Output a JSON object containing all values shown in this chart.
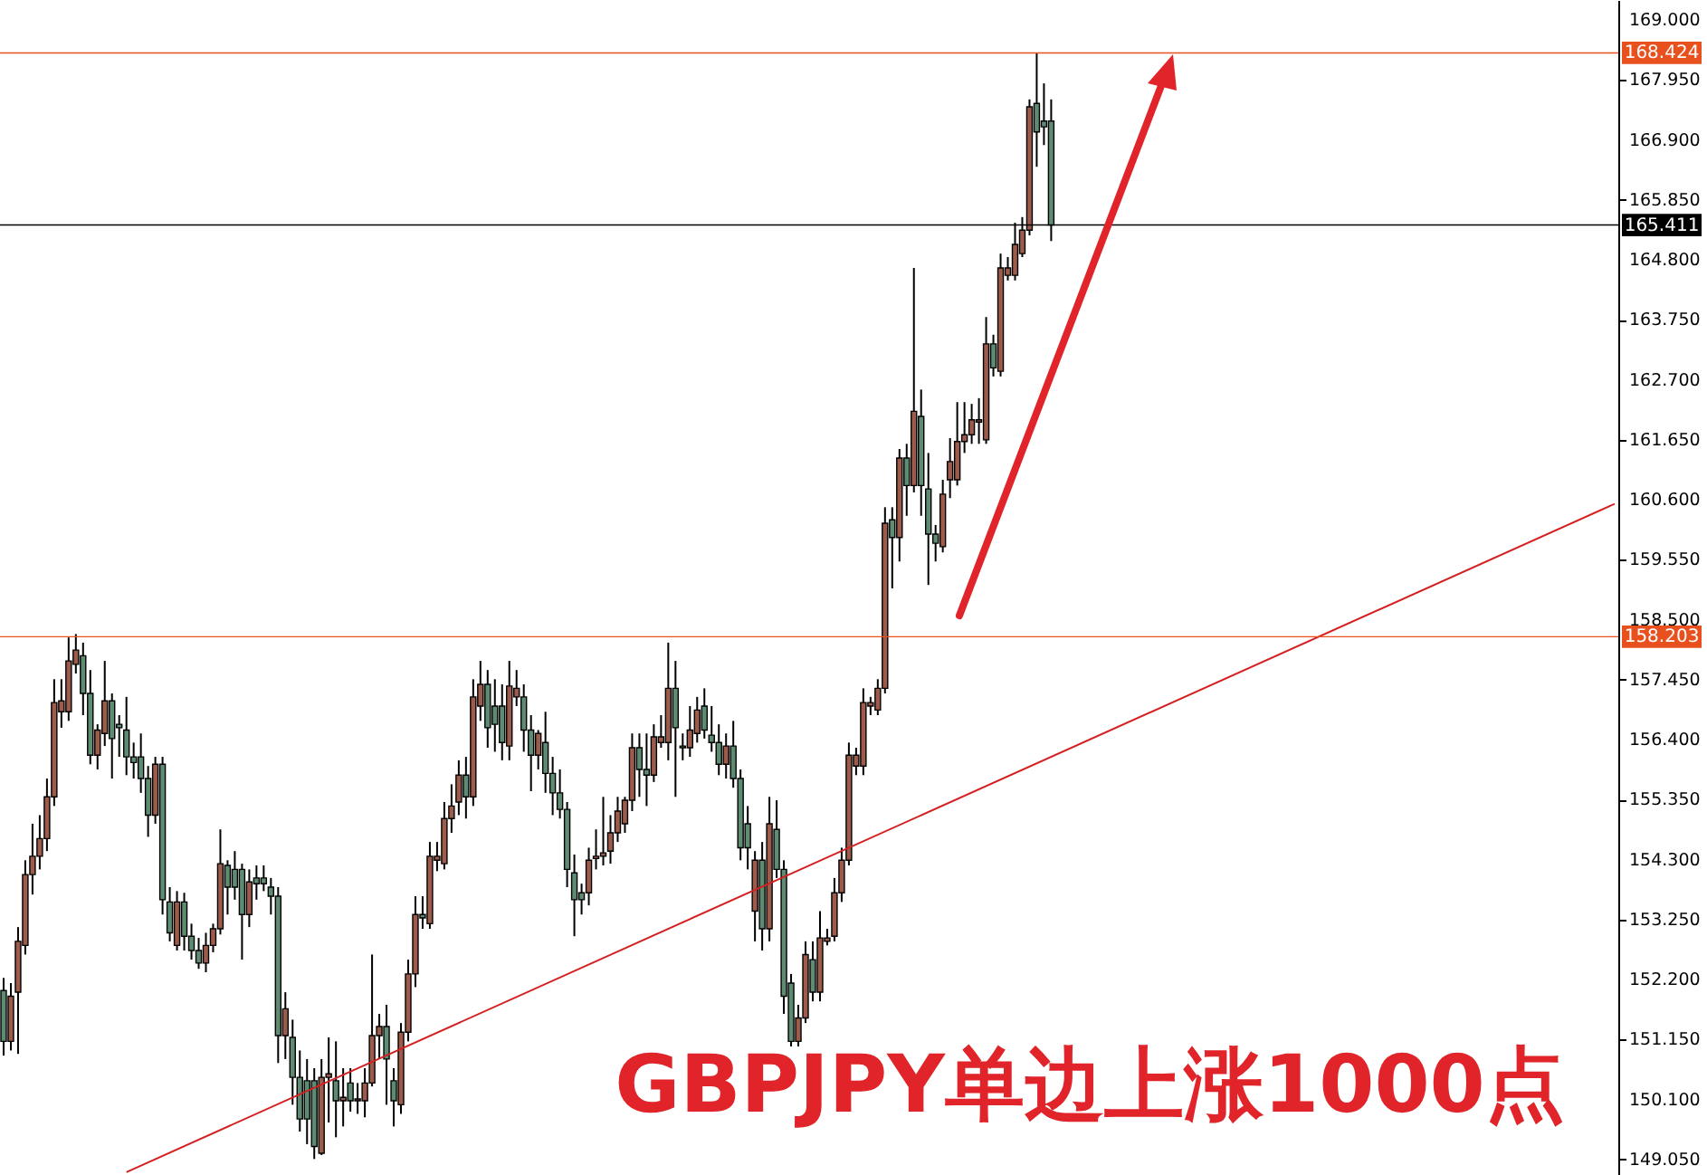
{
  "chart_data": {
    "type": "candlestick",
    "title": "GBPJPY单边上涨1000点",
    "categories": [
      null,
      null,
      null,
      null,
      null,
      null,
      null,
      null,
      null,
      null,
      null,
      null,
      null,
      null,
      null,
      null,
      null,
      null,
      null,
      null,
      null,
      null,
      null,
      null,
      null,
      null,
      null,
      null,
      null,
      null,
      null,
      null,
      null,
      null,
      null,
      null,
      null,
      null,
      null,
      null,
      null,
      null,
      null,
      null,
      null,
      null,
      null,
      null,
      null,
      null,
      null,
      null,
      null,
      null,
      null,
      null,
      null,
      null,
      null,
      null,
      null,
      null,
      null,
      null,
      null,
      null,
      null,
      null,
      null,
      null,
      null,
      null,
      null,
      null,
      null,
      null,
      null,
      null,
      null,
      null,
      null,
      null,
      null,
      null,
      null,
      null,
      null,
      null,
      null,
      null,
      null,
      null,
      null,
      null,
      null,
      null,
      null,
      null,
      null,
      null,
      null,
      null,
      null,
      null,
      null,
      null,
      null,
      null,
      null,
      null,
      null,
      null,
      null,
      null,
      null,
      null,
      null,
      null,
      null,
      null,
      null,
      null,
      null,
      null,
      null,
      null,
      null,
      null,
      null,
      null,
      null,
      null,
      null,
      null,
      null,
      null,
      null,
      null,
      null,
      null,
      null,
      null,
      null,
      null,
      null,
      null,
      null,
      null,
      null,
      null,
      null,
      null,
      null,
      null,
      null,
      null,
      null,
      null,
      null,
      null,
      null,
      null,
      null,
      null,
      null,
      null,
      null,
      null,
      null,
      null,
      null,
      null,
      null,
      null,
      null,
      null,
      null,
      null,
      null,
      null,
      null,
      null,
      null,
      null,
      null,
      null,
      null,
      null,
      null,
      null,
      null,
      null,
      null,
      null,
      null,
      null,
      null,
      null,
      null,
      null,
      null,
      null,
      null,
      null,
      null,
      null,
      null,
      null,
      null,
      null,
      null,
      null,
      null,
      null,
      null,
      null,
      null,
      null,
      null,
      null,
      null,
      null,
      null,
      null
    ],
    "ohlc": [
      [
        152.01,
        152.23,
        150.87,
        151.12
      ],
      [
        151.12,
        152.14,
        150.96,
        151.91
      ],
      [
        151.98,
        153.12,
        150.9,
        152.87
      ],
      [
        152.8,
        154.29,
        152.64,
        154.04
      ],
      [
        154.04,
        154.93,
        153.69,
        154.36
      ],
      [
        154.36,
        155.08,
        154.13,
        154.67
      ],
      [
        154.67,
        155.72,
        154.45,
        155.4
      ],
      [
        155.4,
        157.46,
        155.24,
        157.05
      ],
      [
        156.89,
        157.46,
        156.61,
        157.08
      ],
      [
        156.89,
        158.19,
        156.73,
        157.78
      ],
      [
        157.72,
        158.25,
        157.56,
        157.97
      ],
      [
        157.87,
        158.1,
        156.83,
        157.21
      ],
      [
        157.21,
        157.62,
        155.97,
        156.13
      ],
      [
        156.13,
        156.67,
        155.88,
        156.57
      ],
      [
        156.51,
        157.78,
        156.29,
        157.08
      ],
      [
        157.08,
        157.21,
        155.72,
        156.42
      ],
      [
        156.67,
        156.83,
        156.1,
        156.61
      ],
      [
        156.57,
        157.15,
        155.78,
        156.1
      ],
      [
        156.1,
        156.35,
        155.72,
        156.0
      ],
      [
        156.1,
        156.51,
        155.47,
        155.72
      ],
      [
        155.72,
        155.94,
        154.7,
        155.08
      ],
      [
        155.08,
        156.1,
        154.93,
        155.97
      ],
      [
        155.97,
        156.1,
        153.34,
        153.6
      ],
      [
        153.56,
        153.82,
        152.87,
        153.02
      ],
      [
        152.8,
        153.75,
        152.71,
        153.56
      ],
      [
        153.56,
        153.72,
        152.71,
        152.96
      ],
      [
        152.96,
        153.18,
        152.55,
        152.71
      ],
      [
        152.71,
        152.93,
        152.39,
        152.49
      ],
      [
        152.49,
        153.02,
        152.33,
        152.8
      ],
      [
        152.8,
        153.18,
        152.68,
        153.09
      ],
      [
        153.09,
        154.83,
        152.99,
        154.23
      ],
      [
        154.2,
        154.29,
        153.34,
        153.82
      ],
      [
        154.13,
        154.45,
        153.6,
        153.82
      ],
      [
        154.13,
        154.23,
        152.55,
        153.34
      ],
      [
        153.34,
        154.13,
        153.12,
        153.91
      ],
      [
        153.98,
        154.2,
        153.6,
        153.88
      ],
      [
        153.98,
        154.2,
        153.75,
        153.88
      ],
      [
        153.82,
        153.98,
        153.34,
        153.66
      ],
      [
        153.66,
        153.82,
        150.74,
        151.22
      ],
      [
        151.22,
        151.98,
        150.81,
        151.69
      ],
      [
        151.19,
        151.5,
        150.01,
        150.49
      ],
      [
        150.49,
        150.96,
        149.54,
        149.76
      ],
      [
        150.43,
        150.81,
        149.32,
        149.76
      ],
      [
        150.43,
        150.65,
        149.06,
        149.28
      ],
      [
        149.16,
        150.81,
        149.13,
        150.49
      ],
      [
        150.49,
        151.19,
        149.7,
        150.55
      ],
      [
        150.43,
        151.12,
        149.44,
        150.08
      ],
      [
        150.08,
        150.65,
        149.63,
        150.14
      ],
      [
        150.39,
        150.65,
        149.89,
        150.08
      ],
      [
        150.08,
        150.39,
        149.85,
        150.11
      ],
      [
        150.08,
        150.65,
        149.79,
        150.39
      ],
      [
        150.39,
        152.64,
        150.33,
        151.22
      ],
      [
        151.22,
        151.6,
        150.81,
        151.38
      ],
      [
        151.38,
        151.76,
        150.01,
        150.81
      ],
      [
        150.43,
        150.65,
        149.63,
        150.08
      ],
      [
        150.01,
        151.44,
        149.85,
        151.28
      ],
      [
        151.28,
        152.55,
        151.12,
        152.3
      ],
      [
        152.3,
        153.66,
        152.07,
        153.34
      ],
      [
        153.34,
        153.66,
        153.09,
        153.28
      ],
      [
        153.18,
        154.61,
        153.09,
        154.36
      ],
      [
        154.29,
        154.61,
        154.1,
        154.36
      ],
      [
        154.23,
        155.31,
        154.13,
        155.02
      ],
      [
        155.02,
        155.62,
        154.77,
        155.24
      ],
      [
        155.31,
        156.04,
        155.08,
        155.78
      ],
      [
        155.78,
        156.1,
        155.02,
        155.4
      ],
      [
        155.4,
        157.46,
        155.24,
        157.15
      ],
      [
        156.99,
        157.78,
        156.73,
        157.37
      ],
      [
        157.37,
        157.62,
        156.26,
        156.61
      ],
      [
        156.99,
        157.46,
        156.19,
        156.67
      ],
      [
        156.99,
        157.37,
        156.04,
        156.35
      ],
      [
        156.29,
        157.78,
        156.04,
        157.34
      ],
      [
        157.15,
        157.62,
        156.99,
        157.3
      ],
      [
        157.15,
        157.37,
        156.19,
        156.57
      ],
      [
        156.57,
        156.83,
        155.5,
        156.13
      ],
      [
        156.13,
        156.57,
        155.88,
        156.51
      ],
      [
        156.35,
        156.89,
        155.47,
        155.81
      ],
      [
        155.81,
        156.1,
        155.08,
        155.47
      ],
      [
        155.47,
        155.88,
        155.02,
        155.18
      ],
      [
        155.18,
        155.31,
        153.82,
        154.13
      ],
      [
        154.07,
        154.39,
        152.96,
        153.6
      ],
      [
        153.72,
        153.88,
        153.34,
        153.6
      ],
      [
        153.72,
        154.51,
        153.5,
        154.29
      ],
      [
        154.32,
        154.83,
        154.13,
        154.36
      ],
      [
        154.36,
        155.4,
        154.2,
        154.42
      ],
      [
        154.45,
        155.08,
        154.23,
        154.77
      ],
      [
        154.77,
        155.4,
        154.61,
        155.15
      ],
      [
        154.93,
        155.4,
        154.77,
        155.34
      ],
      [
        155.34,
        156.51,
        155.15,
        156.26
      ],
      [
        156.26,
        156.51,
        155.4,
        155.88
      ],
      [
        155.88,
        156.51,
        155.24,
        155.78
      ],
      [
        155.78,
        156.67,
        155.66,
        156.45
      ],
      [
        156.35,
        156.83,
        156.26,
        156.45
      ],
      [
        156.35,
        158.1,
        156.04,
        157.3
      ],
      [
        157.3,
        157.78,
        155.4,
        156.61
      ],
      [
        156.29,
        156.51,
        156.04,
        156.26
      ],
      [
        156.26,
        156.99,
        156.1,
        156.57
      ],
      [
        156.51,
        157.15,
        156.35,
        156.92
      ],
      [
        156.99,
        157.3,
        156.42,
        156.57
      ],
      [
        156.48,
        156.99,
        156.19,
        156.35
      ],
      [
        156.35,
        156.67,
        155.78,
        155.97
      ],
      [
        155.97,
        156.51,
        155.72,
        156.29
      ],
      [
        156.29,
        156.73,
        155.56,
        155.72
      ],
      [
        155.72,
        155.88,
        154.29,
        154.51
      ],
      [
        154.93,
        155.24,
        154.13,
        154.51
      ],
      [
        153.4,
        154.45,
        152.87,
        154.29
      ],
      [
        154.29,
        154.61,
        152.71,
        153.09
      ],
      [
        153.09,
        155.4,
        152.87,
        154.93
      ],
      [
        154.83,
        155.34,
        153.98,
        154.13
      ],
      [
        154.13,
        154.29,
        151.6,
        151.91
      ],
      [
        152.14,
        152.3,
        151.03,
        151.12
      ],
      [
        151.12,
        151.76,
        151.03,
        151.53
      ],
      [
        151.53,
        152.87,
        151.44,
        152.64
      ],
      [
        152.55,
        152.87,
        151.82,
        151.98
      ],
      [
        151.98,
        153.4,
        151.82,
        152.93
      ],
      [
        152.87,
        153.09,
        152.8,
        152.93
      ],
      [
        152.96,
        153.98,
        152.87,
        153.72
      ],
      [
        153.72,
        154.51,
        153.56,
        154.29
      ],
      [
        154.29,
        156.35,
        154.2,
        156.13
      ],
      [
        155.94,
        156.26,
        155.78,
        156.13
      ],
      [
        155.94,
        157.3,
        155.78,
        157.05
      ],
      [
        156.99,
        157.15,
        156.83,
        157.05
      ],
      [
        156.92,
        157.46,
        156.83,
        157.3
      ],
      [
        157.3,
        160.47,
        157.21,
        160.19
      ],
      [
        160.25,
        160.47,
        159.05,
        159.94
      ],
      [
        159.94,
        161.49,
        159.52,
        161.33
      ],
      [
        161.33,
        161.58,
        160.32,
        160.85
      ],
      [
        160.85,
        164.66,
        160.73,
        162.15
      ],
      [
        162.06,
        162.53,
        160.32,
        160.85
      ],
      [
        160.79,
        161.42,
        159.11,
        160.0
      ],
      [
        160.0,
        160.16,
        159.52,
        159.84
      ],
      [
        159.78,
        160.95,
        159.68,
        160.7
      ],
      [
        160.95,
        161.68,
        160.63,
        161.27
      ],
      [
        160.95,
        162.31,
        160.85,
        161.62
      ],
      [
        161.62,
        162.31,
        161.42,
        161.74
      ],
      [
        161.74,
        162.28,
        161.58,
        162.0
      ],
      [
        161.96,
        162.38,
        161.58,
        162.0
      ],
      [
        161.65,
        163.8,
        161.58,
        163.33
      ],
      [
        163.33,
        163.49,
        162.76,
        162.91
      ],
      [
        162.85,
        164.91,
        162.76,
        164.66
      ],
      [
        164.53,
        164.85,
        164.44,
        164.66
      ],
      [
        164.53,
        165.45,
        164.44,
        165.07
      ],
      [
        164.91,
        165.55,
        164.85,
        165.32
      ],
      [
        165.32,
        167.61,
        165.23,
        167.48
      ],
      [
        167.54,
        168.42,
        166.43,
        167.04
      ],
      [
        167.23,
        167.89,
        166.81,
        167.13
      ],
      [
        167.23,
        167.61,
        165.13,
        165.41
      ],
      null,
      null,
      null,
      null,
      null,
      null,
      null,
      null,
      null,
      null,
      null,
      null,
      null,
      null,
      null,
      null,
      null,
      null,
      null,
      null,
      null,
      null,
      null,
      null,
      null,
      null,
      null,
      null,
      null,
      null,
      null,
      null,
      null,
      null,
      null,
      null,
      null,
      null,
      null,
      null,
      null,
      null,
      null,
      null,
      null,
      null,
      null,
      null,
      null,
      null,
      null,
      null,
      null,
      null,
      null,
      null,
      null,
      null,
      null,
      null,
      null,
      null,
      null,
      null,
      null,
      null,
      null,
      null,
      null,
      null,
      null,
      null,
      null,
      null,
      null,
      null,
      null,
      null
    ],
    "colors": [
      "#5e8b72",
      "#9c5b4b",
      "#9c5b4b",
      "#9c5b4b",
      "#9c5b4b",
      "#9c5b4b",
      "#9c5b4b",
      "#9c5b4b",
      "#9c5b4b",
      "#9c5b4b",
      "#9c5b4b",
      "#5e8b72",
      "#5e8b72",
      "#9c5b4b",
      "#9c5b4b",
      "#5e8b72",
      "#5e8b72",
      "#5e8b72",
      "#5e8b72",
      "#5e8b72",
      "#5e8b72",
      "#9c5b4b",
      "#5e8b72",
      "#5e8b72",
      "#9c5b4b",
      "#5e8b72",
      "#5e8b72",
      "#5e8b72",
      "#9c5b4b",
      "#9c5b4b",
      "#9c5b4b",
      "#5e8b72",
      "#5e8b72",
      "#5e8b72",
      "#9c5b4b",
      "#5e8b72",
      "#5e8b72",
      "#5e8b72",
      "#5e8b72",
      "#9c5b4b",
      "#5e8b72",
      "#5e8b72",
      "#5e8b72",
      "#5e8b72",
      "#9c5b4b",
      "#9c5b4b",
      "#5e8b72",
      "#9c5b4b",
      "#5e8b72",
      "#9c5b4b",
      "#9c5b4b",
      "#9c5b4b",
      "#9c5b4b",
      "#5e8b72",
      "#5e8b72",
      "#9c5b4b",
      "#9c5b4b",
      "#9c5b4b",
      "#5e8b72",
      "#9c5b4b",
      "#9c5b4b",
      "#9c5b4b",
      "#9c5b4b",
      "#9c5b4b",
      "#5e8b72",
      "#9c5b4b",
      "#9c5b4b",
      "#5e8b72",
      "#5e8b72",
      "#5e8b72",
      "#9c5b4b",
      "#9c5b4b",
      "#5e8b72",
      "#5e8b72",
      "#9c5b4b",
      "#5e8b72",
      "#5e8b72",
      "#5e8b72",
      "#5e8b72",
      "#5e8b72",
      "#5e8b72",
      "#9c5b4b",
      "#9c5b4b",
      "#9c5b4b",
      "#9c5b4b",
      "#9c5b4b",
      "#9c5b4b",
      "#9c5b4b",
      "#5e8b72",
      "#5e8b72",
      "#9c5b4b",
      "#9c5b4b",
      "#9c5b4b",
      "#5e8b72",
      "#5e8b72",
      "#9c5b4b",
      "#9c5b4b",
      "#5e8b72",
      "#5e8b72",
      "#5e8b72",
      "#9c5b4b",
      "#5e8b72",
      "#5e8b72",
      "#5e8b72",
      "#9c5b4b",
      "#5e8b72",
      "#9c5b4b",
      "#5e8b72",
      "#5e8b72",
      "#5e8b72",
      "#9c5b4b",
      "#9c5b4b",
      "#5e8b72",
      "#9c5b4b",
      "#9c5b4b",
      "#9c5b4b",
      "#9c5b4b",
      "#9c5b4b",
      "#9c5b4b",
      "#9c5b4b",
      "#9c5b4b",
      "#9c5b4b",
      "#9c5b4b",
      "#5e8b72",
      "#9c5b4b",
      "#5e8b72",
      "#9c5b4b",
      "#5e8b72",
      "#5e8b72",
      "#5e8b72",
      "#9c5b4b",
      "#9c5b4b",
      "#9c5b4b",
      "#9c5b4b",
      "#9c5b4b",
      "#9c5b4b",
      "#9c5b4b",
      "#5e8b72",
      "#9c5b4b",
      "#9c5b4b",
      "#9c5b4b",
      "#9c5b4b",
      "#9c5b4b",
      "#5e8b72",
      "#5e8b72",
      "#5e8b72",
      null,
      null,
      null,
      null,
      null,
      null,
      null,
      null,
      null,
      null,
      null,
      null,
      null,
      null,
      null,
      null,
      null,
      null,
      null,
      null,
      null,
      null,
      null,
      null,
      null,
      null,
      null,
      null,
      null,
      null,
      null,
      null,
      null,
      null,
      null,
      null,
      null,
      null,
      null,
      null,
      null,
      null,
      null,
      null,
      null,
      null,
      null,
      null,
      null,
      null,
      null,
      null,
      null,
      null,
      null,
      null,
      null,
      null,
      null,
      null,
      null,
      null,
      null,
      null,
      null,
      null,
      null,
      null,
      null,
      null,
      null,
      null,
      null,
      null,
      null,
      null,
      null,
      null
    ],
    "series": [
      {
        "type": "line",
        "color": "#d42020",
        "values": [
          null,
          null,
          null,
          null,
          null,
          null,
          null,
          null,
          null,
          null,
          null,
          null,
          null,
          null,
          null,
          null,
          null,
          148.83,
          null,
          null,
          null,
          null,
          null,
          null,
          null,
          null,
          null,
          null,
          null,
          null,
          null,
          null,
          null,
          null,
          null,
          null,
          null,
          null,
          null,
          null,
          null,
          null,
          null,
          null,
          null,
          null,
          null,
          null,
          null,
          null,
          null,
          null,
          null,
          null,
          null,
          null,
          null,
          null,
          null,
          null,
          null,
          null,
          null,
          null,
          null,
          null,
          null,
          null,
          null,
          null,
          null,
          null,
          null,
          null,
          null,
          null,
          null,
          null,
          null,
          null,
          null,
          null,
          null,
          null,
          null,
          null,
          null,
          null,
          null,
          null,
          null,
          null,
          null,
          null,
          null,
          null,
          null,
          null,
          null,
          null,
          null,
          null,
          null,
          null,
          null,
          null,
          null,
          null,
          null,
          null,
          null,
          null,
          null,
          null,
          null,
          null,
          null,
          null,
          null,
          null,
          null,
          null,
          null,
          null,
          null,
          null,
          null,
          null,
          null,
          null,
          null,
          null,
          null,
          null,
          null,
          null,
          null,
          null,
          null,
          null,
          null,
          null,
          null,
          null,
          null,
          null,
          null,
          null,
          null,
          null,
          null,
          null,
          null,
          null,
          null,
          null,
          null,
          null,
          null,
          null,
          null,
          null,
          null,
          null,
          null,
          null,
          null,
          null,
          null,
          null,
          null,
          null,
          null,
          null,
          null,
          null,
          null,
          null,
          null,
          null,
          null,
          null,
          null,
          null,
          null,
          null,
          null,
          null,
          null,
          null,
          null,
          null,
          null,
          null,
          null,
          null,
          null,
          null,
          null,
          null,
          null,
          null,
          null,
          null,
          null,
          null,
          null,
          null,
          null,
          null,
          null,
          null,
          null,
          null,
          null,
          null,
          null,
          null,
          null,
          null,
          null,
          null,
          null,
          160.53
        ]
      }
    ],
    "ylim": [
      148.78,
      169.35
    ],
    "yticks": [
      {
        "value": 149.05,
        "label": "149.050"
      },
      {
        "value": 150.1,
        "label": "150.100"
      },
      {
        "value": 151.15,
        "label": "151.150"
      },
      {
        "value": 152.2,
        "label": "152.200"
      },
      {
        "value": 153.25,
        "label": "153.250"
      },
      {
        "value": 154.3,
        "label": "154.300"
      },
      {
        "value": 155.35,
        "label": "155.350"
      },
      {
        "value": 156.4,
        "label": "156.400"
      },
      {
        "value": 157.45,
        "label": "157.450"
      },
      {
        "value": 158.5,
        "label": "158.500"
      },
      {
        "value": 159.55,
        "label": "159.550"
      },
      {
        "value": 160.6,
        "label": "160.600"
      },
      {
        "value": 161.65,
        "label": "161.650"
      },
      {
        "value": 162.7,
        "label": "162.700"
      },
      {
        "value": 163.75,
        "label": "163.750"
      },
      {
        "value": 164.8,
        "label": "164.800"
      },
      {
        "value": 165.85,
        "label": "165.850"
      },
      {
        "value": 166.9,
        "label": "166.900"
      },
      {
        "value": 167.95,
        "label": "167.950"
      },
      {
        "value": 169,
        "label": "169.000"
      }
    ],
    "ref_lines": [
      {
        "axis": "y",
        "value": 168.424,
        "label": "168.424",
        "color": "#e8501e"
      },
      {
        "axis": "y",
        "value": 165.411,
        "label": "165.411",
        "color": "#000000"
      },
      {
        "axis": "y",
        "value": 158.203,
        "label": "158.203",
        "color": "#e8501e"
      }
    ],
    "tick_labels": "y"
  }
}
